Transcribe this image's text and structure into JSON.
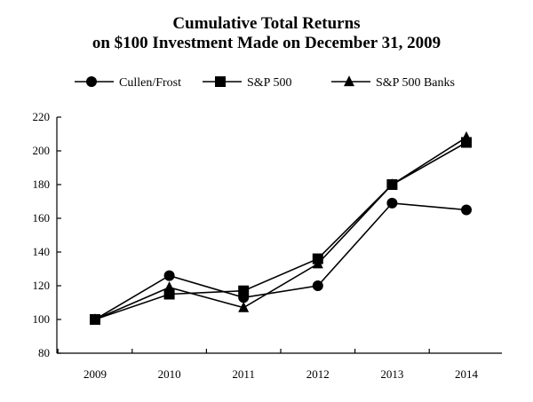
{
  "chart_data": {
    "type": "line",
    "title": "Cumulative Total Returns",
    "subtitle": "on $100 Investment Made on December 31, 2009",
    "xlabel": "",
    "ylabel": "",
    "categories": [
      "2009",
      "2010",
      "2011",
      "2012",
      "2013",
      "2014"
    ],
    "ylim": [
      80,
      220
    ],
    "yticks": [
      80,
      100,
      120,
      140,
      160,
      180,
      200,
      220
    ],
    "grid": false,
    "legend_position": "top",
    "series": [
      {
        "name": "Cullen/Frost",
        "marker": "circle",
        "values": [
          100,
          126,
          113,
          120,
          169,
          165
        ]
      },
      {
        "name": "S&P 500",
        "marker": "square",
        "values": [
          100,
          115,
          117,
          136,
          180,
          205
        ]
      },
      {
        "name": "S&P 500 Banks",
        "marker": "triangle",
        "values": [
          100,
          119,
          107,
          133,
          180,
          208
        ]
      }
    ],
    "line_color": "#000000"
  }
}
